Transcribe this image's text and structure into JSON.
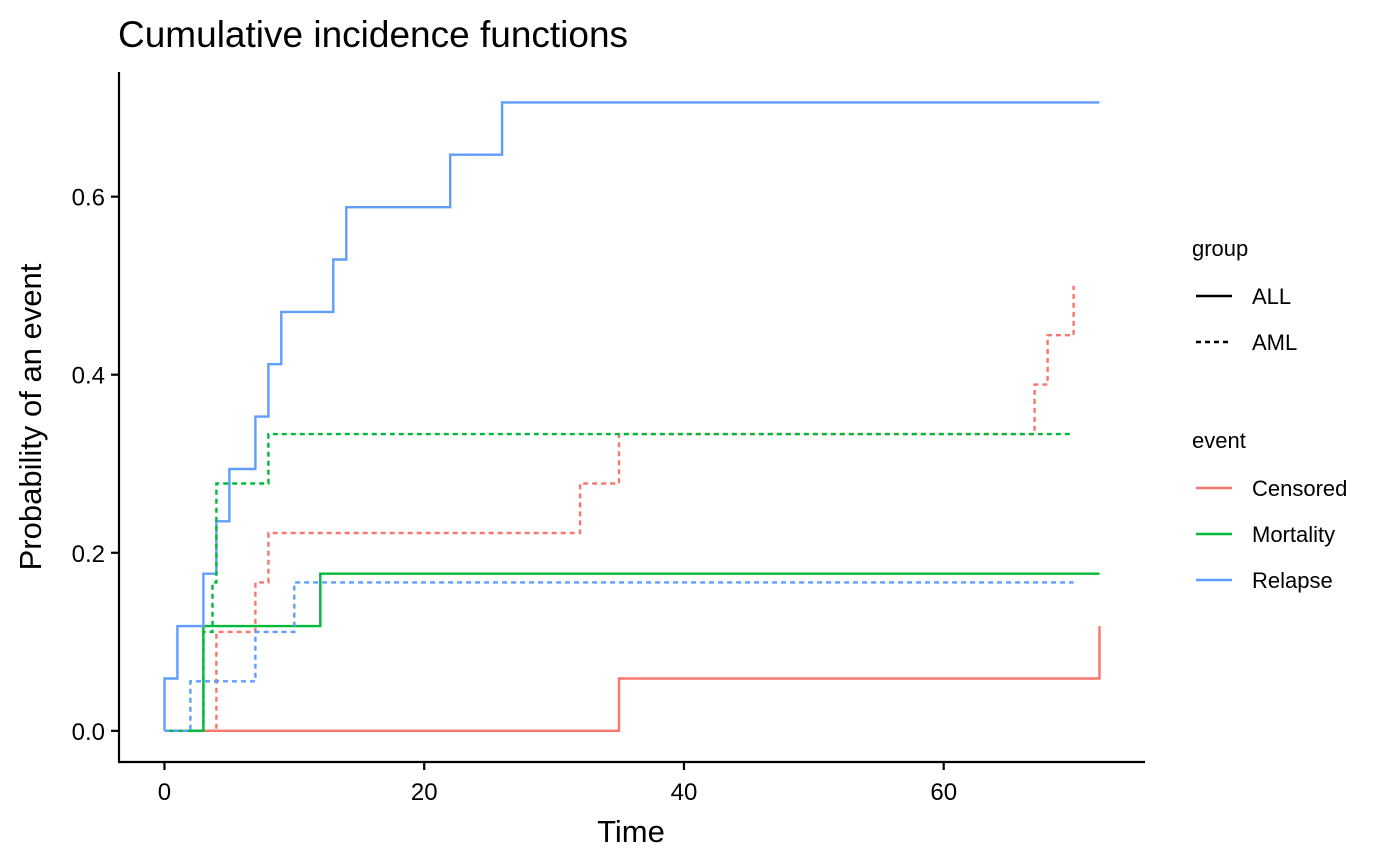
{
  "chart_data": {
    "type": "line",
    "step": true,
    "title": "Cumulative incidence functions",
    "xlabel": "Time",
    "ylabel": "Probability of an event",
    "xlim": [
      -3.5,
      75.5
    ],
    "ylim": [
      -0.035,
      0.74
    ],
    "x_ticks": [
      0,
      20,
      40,
      60
    ],
    "y_ticks": [
      0.0,
      0.2,
      0.4,
      0.6
    ],
    "x_tick_labels": [
      "0",
      "20",
      "40",
      "60"
    ],
    "y_tick_labels": [
      "0.0",
      "0.2",
      "0.4",
      "0.6"
    ],
    "grid": false,
    "legend_placement": "right",
    "legends": [
      {
        "title": "group",
        "kind": "linetype",
        "entries": [
          {
            "label": "ALL",
            "dash": "solid"
          },
          {
            "label": "AML",
            "dash": "dashed"
          }
        ]
      },
      {
        "title": "event",
        "kind": "color",
        "entries": [
          {
            "label": "Censored",
            "color": "#F8766D"
          },
          {
            "label": "Mortality",
            "color": "#00BA38"
          },
          {
            "label": "Relapse",
            "color": "#619CFF"
          }
        ]
      }
    ],
    "series": [
      {
        "event": "Censored",
        "group": "ALL",
        "color": "#F8766D",
        "dash": "solid",
        "x": [
          0,
          35,
          72,
          72
        ],
        "y": [
          0,
          0.0588,
          0.0588,
          0.1176
        ]
      },
      {
        "event": "Mortality",
        "group": "ALL",
        "color": "#00BA38",
        "dash": "solid",
        "x": [
          0,
          3,
          12,
          72
        ],
        "y": [
          0,
          0.1176,
          0.1765,
          0.1765
        ]
      },
      {
        "event": "Relapse",
        "group": "ALL",
        "color": "#619CFF",
        "dash": "solid",
        "x": [
          0,
          0,
          1,
          3,
          4,
          5,
          7,
          8,
          9,
          13,
          14,
          22,
          26,
          72
        ],
        "y": [
          0,
          0.0588,
          0.1176,
          0.1765,
          0.2353,
          0.2941,
          0.3529,
          0.4118,
          0.4706,
          0.5294,
          0.5882,
          0.6471,
          0.7059,
          0.7059
        ]
      },
      {
        "event": "Censored",
        "group": "AML",
        "color": "#F8766D",
        "dash": "dashed",
        "x": [
          0,
          4,
          7,
          8,
          32,
          35,
          67,
          68,
          69,
          70
        ],
        "y": [
          0,
          0.1111,
          0.1667,
          0.2222,
          0.2778,
          0.3333,
          0.3889,
          0.4444,
          0.4444,
          0.5
        ]
      },
      {
        "event": "Mortality",
        "group": "AML",
        "color": "#00BA38",
        "dash": "dashed",
        "x": [
          0,
          3,
          3.7,
          4,
          8,
          70
        ],
        "y": [
          0,
          0.1111,
          0.1667,
          0.2778,
          0.3333,
          0.3333
        ]
      },
      {
        "event": "Relapse",
        "group": "AML",
        "color": "#619CFF",
        "dash": "dashed",
        "x": [
          0,
          2,
          7,
          10,
          70
        ],
        "y": [
          0,
          0.0556,
          0.1111,
          0.1667,
          0.1667
        ]
      }
    ]
  }
}
